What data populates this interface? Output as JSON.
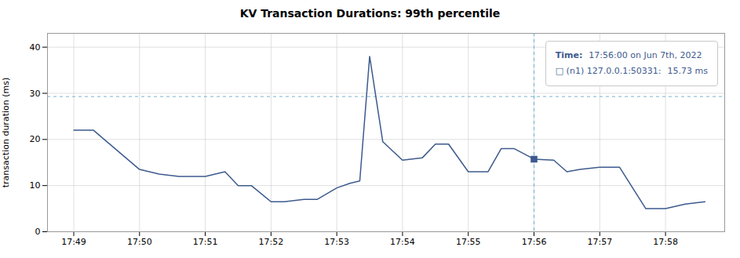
{
  "chart_data": {
    "type": "line",
    "title": "KV Transaction Durations: 99th percentile",
    "y_label": "transaction duration (ms)",
    "x": [
      0.0,
      0.3,
      1.0,
      1.3,
      1.6,
      2.0,
      2.3,
      2.5,
      2.7,
      3.0,
      3.2,
      3.5,
      3.7,
      4.0,
      4.2,
      4.35,
      4.5,
      4.7,
      5.0,
      5.3,
      5.5,
      5.7,
      6.0,
      6.3,
      6.5,
      6.7,
      7.0,
      7.3,
      7.5,
      7.7,
      8.0,
      8.3,
      8.7,
      9.0,
      9.3,
      9.6
    ],
    "values": [
      22,
      22,
      13.5,
      12.5,
      12,
      12,
      13,
      10,
      10,
      6.5,
      6.5,
      7,
      7,
      9.5,
      10.5,
      11,
      38,
      19.5,
      15.5,
      16,
      19,
      19,
      13,
      13,
      18,
      18,
      15.73,
      15.5,
      13,
      13.5,
      14,
      14,
      5,
      5,
      6,
      6.5
    ],
    "color": "#3d5a8e",
    "xlim": [
      -0.4,
      9.9
    ],
    "xticks": [
      {
        "value": 0,
        "label": "17:49"
      },
      {
        "value": 1,
        "label": "17:50"
      },
      {
        "value": 2,
        "label": "17:51"
      },
      {
        "value": 3,
        "label": "17:52"
      },
      {
        "value": 4,
        "label": "17:53"
      },
      {
        "value": 5,
        "label": "17:54"
      },
      {
        "value": 6,
        "label": "17:55"
      },
      {
        "value": 7,
        "label": "17:56"
      },
      {
        "value": 8,
        "label": "17:57"
      },
      {
        "value": 9,
        "label": "17:58"
      }
    ],
    "ylim": [
      0,
      43
    ],
    "yticks": [
      0,
      10,
      20,
      30,
      40
    ],
    "grid": true,
    "reference_lines": [
      {
        "axis": "y",
        "value": 29.3,
        "color": "#7ab3d0",
        "line_style": "dashed"
      },
      {
        "axis": "x",
        "value": 7.0,
        "color": "#7ab3d0",
        "line_style": "dashed"
      }
    ],
    "highlight": {
      "x": 7.0,
      "y": 15.73,
      "marker": "square"
    },
    "tooltip": [
      [
        "Time:",
        "17:56:00 on Jun 7th, 2022"
      ],
      [
        "□ (n1) 127.0.0.1:50331:",
        "15.73 ms"
      ]
    ]
  }
}
